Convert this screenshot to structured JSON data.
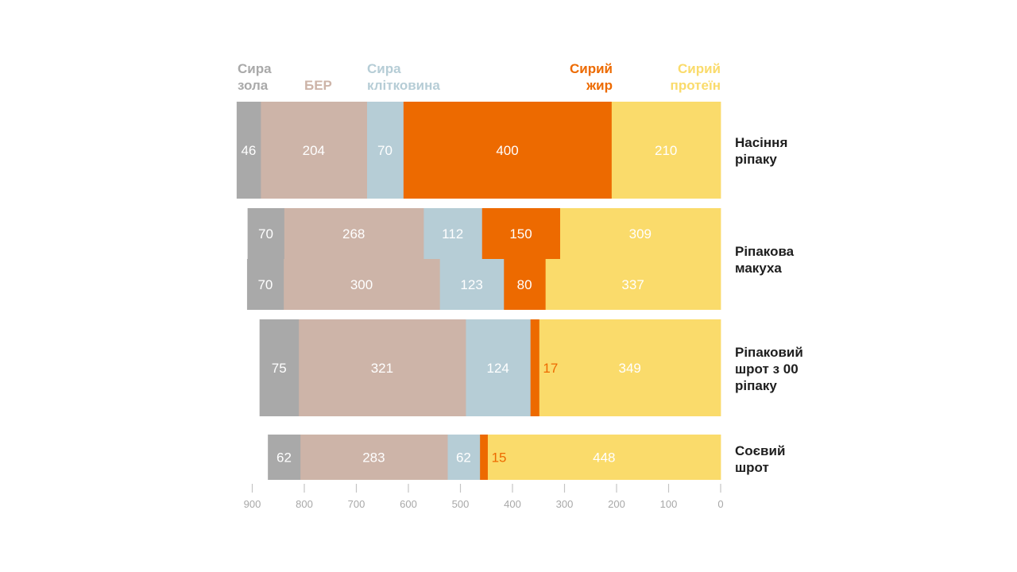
{
  "chart_data": {
    "type": "bar",
    "orientation": "horizontal-stacked",
    "x_reversed": true,
    "xlim": [
      0,
      900
    ],
    "x_ticks": [
      900,
      800,
      700,
      600,
      500,
      400,
      300,
      200,
      100,
      0
    ],
    "components": [
      {
        "key": "ash",
        "legend": [
          "Сира",
          "зола"
        ],
        "color": "#a9a9a9",
        "label_color": "#ffffff"
      },
      {
        "key": "ber",
        "legend": [
          "БЕР"
        ],
        "color": "#cdb4a8",
        "label_color": "#ffffff"
      },
      {
        "key": "fiber",
        "legend": [
          "Сира",
          "клітковина"
        ],
        "color": "#b6cdd6",
        "label_color": "#ffffff"
      },
      {
        "key": "fat",
        "legend": [
          "Сирий",
          "жир"
        ],
        "color": "#ed6a00",
        "label_color": "#ffffff"
      },
      {
        "key": "protein",
        "legend": [
          "Сирий",
          "протеїн"
        ],
        "color": "#fadb6b",
        "label_color": "#ffffff"
      }
    ],
    "categories": [
      {
        "label": [
          "Насіння",
          "ріпаку"
        ],
        "rows": [
          [
            46,
            204,
            70,
            400,
            210
          ]
        ]
      },
      {
        "label": [
          "Ріпакова",
          "макуха"
        ],
        "rows": [
          [
            70,
            268,
            112,
            150,
            309
          ],
          [
            70,
            300,
            123,
            80,
            337
          ]
        ]
      },
      {
        "label": [
          "Ріпаковий",
          "шрот з 00",
          "ріпаку"
        ],
        "rows": [
          [
            75,
            321,
            124,
            17,
            349
          ]
        ]
      },
      {
        "label": [
          "Соєвий",
          "шрот"
        ],
        "rows": [
          [
            62,
            283,
            62,
            15,
            448
          ]
        ]
      }
    ]
  }
}
